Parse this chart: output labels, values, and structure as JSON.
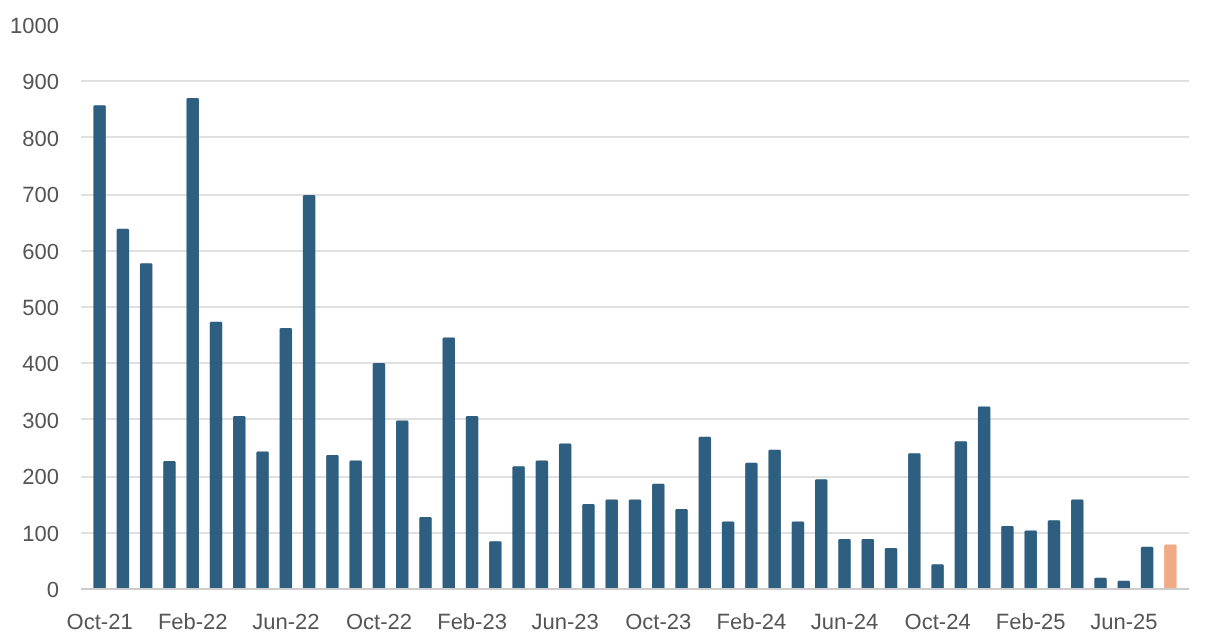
{
  "chart_data": {
    "type": "bar",
    "categories": [
      "Oct-21",
      null,
      null,
      null,
      "Feb-22",
      null,
      null,
      null,
      "Jun-22",
      null,
      null,
      null,
      "Oct-22",
      null,
      null,
      null,
      "Feb-23",
      null,
      null,
      null,
      "Jun-23",
      null,
      null,
      null,
      "Oct-23",
      null,
      null,
      null,
      "Feb-24",
      null,
      null,
      null,
      "Jun-24",
      null,
      null,
      null,
      "Oct-24",
      null,
      null,
      null,
      "Feb-25",
      null,
      null,
      null,
      "Jun-25",
      null,
      null
    ],
    "values": [
      856,
      637,
      576,
      225,
      869,
      472,
      305,
      242,
      461,
      697,
      236,
      226,
      399,
      297,
      126,
      444,
      305,
      83,
      216,
      226,
      256,
      149,
      157,
      157,
      185,
      140,
      268,
      118,
      222,
      245,
      118,
      193,
      87,
      87,
      71,
      239,
      42,
      260,
      322,
      110,
      102,
      120,
      157,
      18,
      13,
      73,
      77
    ],
    "colors": [
      "#2e5f80",
      "#2e5f80",
      "#2e5f80",
      "#2e5f80",
      "#2e5f80",
      "#2e5f80",
      "#2e5f80",
      "#2e5f80",
      "#2e5f80",
      "#2e5f80",
      "#2e5f80",
      "#2e5f80",
      "#2e5f80",
      "#2e5f80",
      "#2e5f80",
      "#2e5f80",
      "#2e5f80",
      "#2e5f80",
      "#2e5f80",
      "#2e5f80",
      "#2e5f80",
      "#2e5f80",
      "#2e5f80",
      "#2e5f80",
      "#2e5f80",
      "#2e5f80",
      "#2e5f80",
      "#2e5f80",
      "#2e5f80",
      "#2e5f80",
      "#2e5f80",
      "#2e5f80",
      "#2e5f80",
      "#2e5f80",
      "#2e5f80",
      "#2e5f80",
      "#2e5f80",
      "#2e5f80",
      "#2e5f80",
      "#2e5f80",
      "#2e5f80",
      "#2e5f80",
      "#2e5f80",
      "#2e5f80",
      "#2e5f80",
      "#2e5f80",
      "#f0aa85"
    ],
    "ylim": [
      0,
      1000
    ],
    "yticks": [
      0,
      100,
      200,
      300,
      400,
      500,
      600,
      700,
      800,
      900,
      1000
    ],
    "grid": "y"
  }
}
